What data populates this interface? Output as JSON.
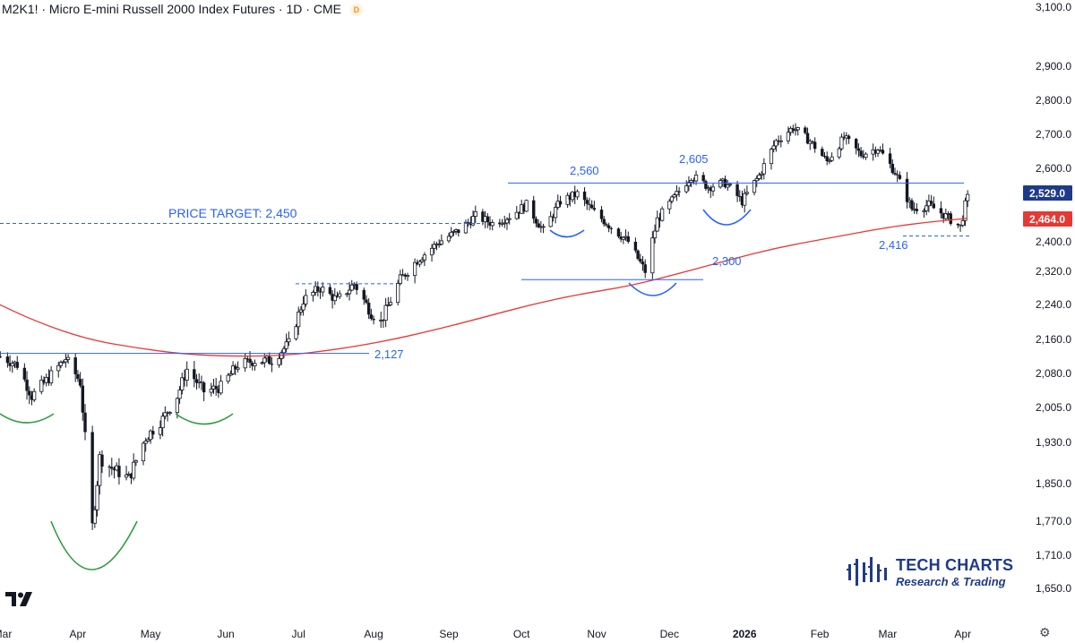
{
  "header": {
    "symbol": "M2K1!",
    "name": "Micro E-mini Russell 2000 Index Futures",
    "interval": "1D",
    "exchange": "CME",
    "separator": "·",
    "delayed_badge": "D"
  },
  "branding": {
    "company": "TECH CHARTS",
    "tagline": "Research & Trading",
    "icon": "bar-chart-icon",
    "watermark_icon": "tradingview-icon"
  },
  "chart_data": {
    "type": "candlestick",
    "title": "M2K1! · Micro E-mini Russell 2000 Index Futures · 1D · CME",
    "y_ticks": [
      3100,
      2900,
      2800,
      2700,
      2600,
      2400,
      2320,
      2240,
      2160,
      2080,
      2005,
      1930,
      1850,
      1770,
      1710,
      1650
    ],
    "y_tick_labels": [
      "3,100.0",
      "2,900.0",
      "2,800.0",
      "2,700.0",
      "2,600.0",
      "2,400.0",
      "2,320.0",
      "2,240.0",
      "2,160.0",
      "2,080.0",
      "2,005.0",
      "1,930.0",
      "1,850.0",
      "1,770.0",
      "1,710.0",
      "1,650.0"
    ],
    "x_ticks": [
      {
        "label": "Mar",
        "date": "2025-03-01"
      },
      {
        "label": "Apr",
        "date": "2025-04-01"
      },
      {
        "label": "May",
        "date": "2025-05-01"
      },
      {
        "label": "Jun",
        "date": "2025-06-01"
      },
      {
        "label": "Jul",
        "date": "2025-07-01"
      },
      {
        "label": "Aug",
        "date": "2025-08-01"
      },
      {
        "label": "Sep",
        "date": "2025-09-01"
      },
      {
        "label": "Oct",
        "date": "2025-10-01"
      },
      {
        "label": "Nov",
        "date": "2025-11-01"
      },
      {
        "label": "Dec",
        "date": "2025-12-01"
      },
      {
        "label": "2026",
        "date": "2026-01-01",
        "bold": true
      },
      {
        "label": "Feb",
        "date": "2026-02-01"
      },
      {
        "label": "Mar",
        "date": "2026-03-01"
      },
      {
        "label": "Apr",
        "date": "2026-04-01"
      }
    ],
    "price_path": [
      [
        "2025-02-28",
        2120
      ],
      [
        "2025-03-07",
        2100
      ],
      [
        "2025-03-13",
        2030
      ],
      [
        "2025-03-20",
        2070
      ],
      [
        "2025-03-27",
        2115
      ],
      [
        "2025-04-02",
        2060
      ],
      [
        "2025-04-07",
        1760
      ],
      [
        "2025-04-10",
        1900
      ],
      [
        "2025-04-15",
        1880
      ],
      [
        "2025-04-22",
        1860
      ],
      [
        "2025-04-29",
        1940
      ],
      [
        "2025-05-06",
        1980
      ],
      [
        "2025-05-12",
        2030
      ],
      [
        "2025-05-16",
        2090
      ],
      [
        "2025-05-23",
        2040
      ],
      [
        "2025-05-30",
        2050
      ],
      [
        "2025-06-06",
        2100
      ],
      [
        "2025-06-13",
        2110
      ],
      [
        "2025-06-20",
        2110
      ],
      [
        "2025-06-27",
        2150
      ],
      [
        "2025-07-03",
        2250
      ],
      [
        "2025-07-10",
        2280
      ],
      [
        "2025-07-17",
        2250
      ],
      [
        "2025-07-24",
        2290
      ],
      [
        "2025-07-31",
        2220
      ],
      [
        "2025-08-04",
        2200
      ],
      [
        "2025-08-12",
        2300
      ],
      [
        "2025-08-19",
        2350
      ],
      [
        "2025-08-28",
        2400
      ],
      [
        "2025-09-05",
        2430
      ],
      [
        "2025-09-12",
        2470
      ],
      [
        "2025-09-19",
        2450
      ],
      [
        "2025-09-26",
        2470
      ],
      [
        "2025-10-03",
        2500
      ],
      [
        "2025-10-10",
        2430
      ],
      [
        "2025-10-17",
        2510
      ],
      [
        "2025-10-24",
        2530
      ],
      [
        "2025-10-31",
        2480
      ],
      [
        "2025-11-07",
        2440
      ],
      [
        "2025-11-14",
        2400
      ],
      [
        "2025-11-21",
        2320
      ],
      [
        "2025-11-26",
        2460
      ],
      [
        "2025-12-03",
        2520
      ],
      [
        "2025-12-10",
        2580
      ],
      [
        "2025-12-17",
        2550
      ],
      [
        "2025-12-24",
        2560
      ],
      [
        "2025-12-31",
        2510
      ],
      [
        "2026-01-07",
        2580
      ],
      [
        "2026-01-14",
        2680
      ],
      [
        "2026-01-21",
        2720
      ],
      [
        "2026-01-28",
        2680
      ],
      [
        "2026-02-04",
        2620
      ],
      [
        "2026-02-11",
        2690
      ],
      [
        "2026-02-18",
        2640
      ],
      [
        "2026-02-25",
        2660
      ],
      [
        "2026-03-04",
        2590
      ],
      [
        "2026-03-11",
        2490
      ],
      [
        "2026-03-18",
        2500
      ],
      [
        "2026-03-25",
        2470
      ],
      [
        "2026-03-31",
        2440
      ],
      [
        "2026-04-03",
        2529
      ]
    ],
    "moving_average": [
      [
        "2025-02-24",
        2250
      ],
      [
        "2025-03-15",
        2200
      ],
      [
        "2025-04-05",
        2160
      ],
      [
        "2025-04-25",
        2140
      ],
      [
        "2025-05-15",
        2125
      ],
      [
        "2025-06-05",
        2120
      ],
      [
        "2025-06-25",
        2122
      ],
      [
        "2025-07-15",
        2135
      ],
      [
        "2025-08-05",
        2155
      ],
      [
        "2025-08-25",
        2180
      ],
      [
        "2025-09-15",
        2210
      ],
      [
        "2025-10-05",
        2240
      ],
      [
        "2025-10-25",
        2265
      ],
      [
        "2025-11-15",
        2285
      ],
      [
        "2025-12-05",
        2315
      ],
      [
        "2025-12-25",
        2350
      ],
      [
        "2026-01-15",
        2385
      ],
      [
        "2026-02-05",
        2410
      ],
      [
        "2026-02-25",
        2435
      ],
      [
        "2026-03-15",
        2452
      ],
      [
        "2026-04-03",
        2464
      ]
    ],
    "last_price": "2,529.0",
    "ma_price": "2,464.0",
    "annotations": {
      "price_target": "PRICE TARGET: 2,450",
      "level_2127": "2,127",
      "level_2300": "2,300",
      "level_2560": "2,560",
      "level_2605": "2,605",
      "level_2416": "2,416"
    },
    "levels": {
      "price_target": 2450,
      "neckline_low": 2127,
      "neckline_mid": 2300,
      "neckline_high": 2560,
      "peak": 2605,
      "support": 2416,
      "july_high": 2290
    },
    "colors": {
      "candle": "#131722",
      "ma_line": "#e53935",
      "annotation": "#2962ff",
      "pattern_green": "#2e9e44",
      "last_box": "#1e3a8a",
      "ma_box": "#e53935"
    }
  }
}
